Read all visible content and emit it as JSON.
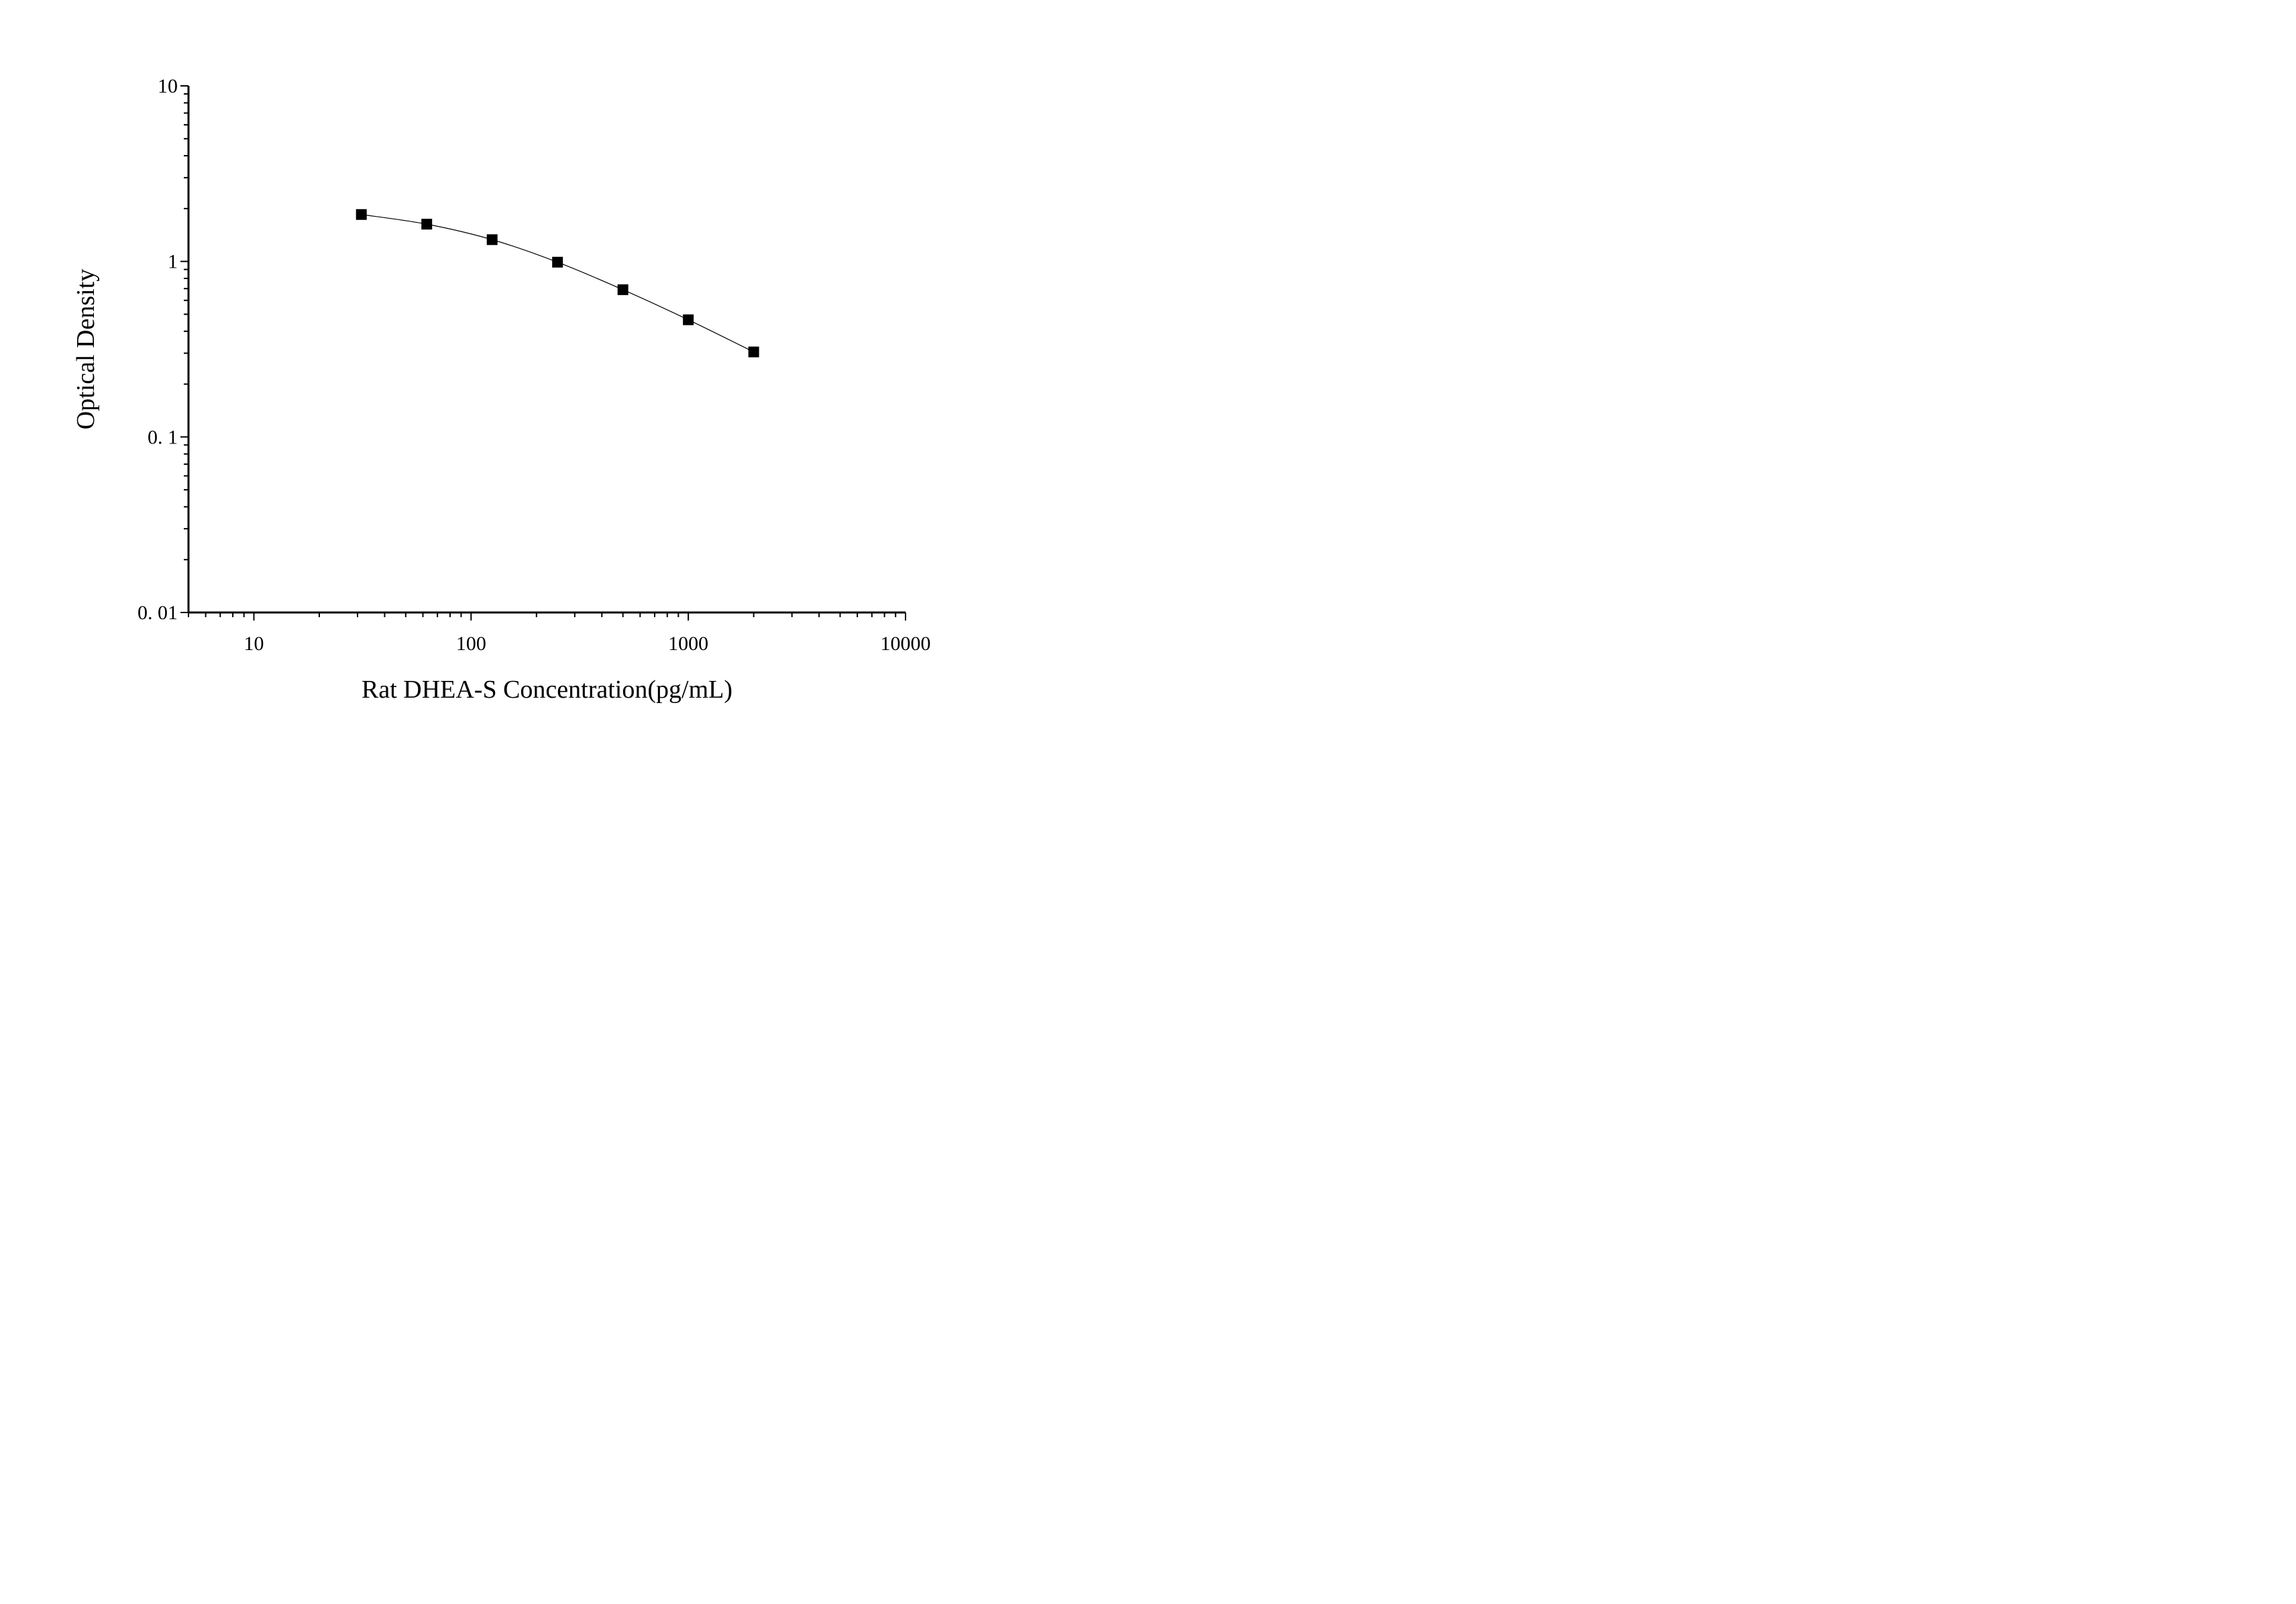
{
  "chart_data": {
    "type": "scatter",
    "xlabel": "Rat DHEA-S Concentration(pg/mL)",
    "ylabel": "Optical Density",
    "x_scale": "log",
    "y_scale": "log",
    "xlim": [
      5,
      10000
    ],
    "ylim": [
      0.01,
      10
    ],
    "x_ticks": [
      {
        "value": 10,
        "label": "10"
      },
      {
        "value": 100,
        "label": "100"
      },
      {
        "value": 1000,
        "label": "1000"
      },
      {
        "value": 10000,
        "label": "10000"
      }
    ],
    "y_ticks": [
      {
        "value": 0.01,
        "label": "0. 01"
      },
      {
        "value": 0.1,
        "label": "0. 1"
      },
      {
        "value": 1,
        "label": "1"
      },
      {
        "value": 10,
        "label": "10"
      }
    ],
    "grid": false,
    "marker": "square",
    "line": "smooth",
    "color": "#000000",
    "series": [
      {
        "x": [
          31.25,
          62.5,
          125,
          250,
          500,
          1000,
          2000
        ],
        "y": [
          1.85,
          1.63,
          1.33,
          0.99,
          0.69,
          0.465,
          0.305
        ]
      }
    ]
  }
}
